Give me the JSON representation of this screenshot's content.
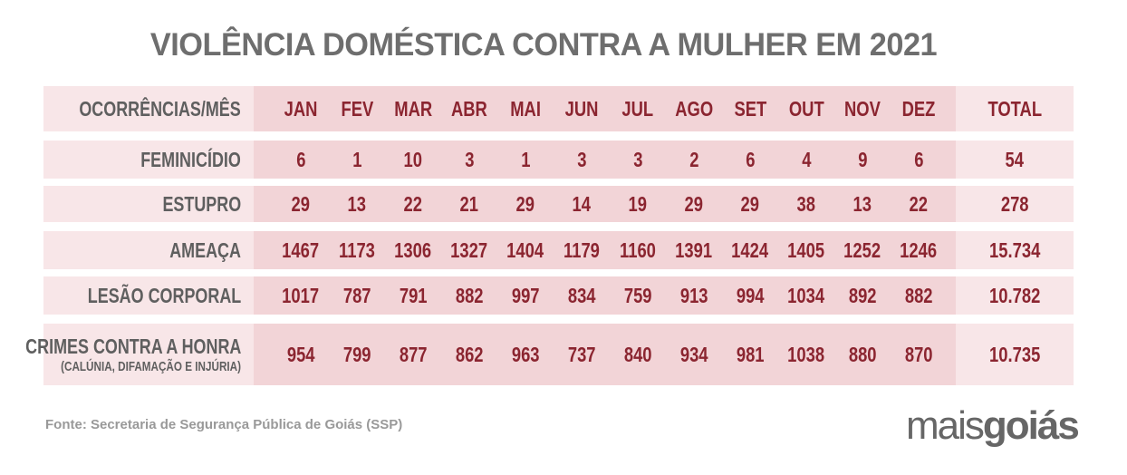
{
  "chart_data": {
    "type": "table",
    "title": "VIOLÊNCIA DOMÉSTICA CONTRA A MULHER EM 2021",
    "header_label": "OCORRÊNCIAS/MÊS",
    "categories": [
      "JAN",
      "FEV",
      "MAR",
      "ABR",
      "MAI",
      "JUN",
      "JUL",
      "AGO",
      "SET",
      "OUT",
      "NOV",
      "DEZ"
    ],
    "total_label": "TOTAL",
    "rows": [
      {
        "name": "FEMINICÍDIO",
        "sub": "",
        "values": [
          6,
          1,
          10,
          3,
          1,
          3,
          3,
          2,
          6,
          4,
          9,
          6
        ],
        "total": "54"
      },
      {
        "name": "ESTUPRO",
        "sub": "",
        "values": [
          29,
          13,
          22,
          21,
          29,
          14,
          19,
          29,
          29,
          38,
          13,
          22
        ],
        "total": "278"
      },
      {
        "name": "AMEAÇA",
        "sub": "",
        "values": [
          1467,
          1173,
          1306,
          1327,
          1404,
          1179,
          1160,
          1391,
          1424,
          1405,
          1252,
          1246
        ],
        "total": "15.734"
      },
      {
        "name": "LESÃO CORPORAL",
        "sub": "",
        "values": [
          1017,
          787,
          791,
          882,
          997,
          834,
          759,
          913,
          994,
          1034,
          892,
          882
        ],
        "total": "10.782"
      },
      {
        "name": "CRIMES CONTRA A HONRA",
        "sub": "(CALÚNIA, DIFAMAÇÃO E INJÚRIA)",
        "values": [
          954,
          799,
          877,
          862,
          963,
          737,
          840,
          934,
          981,
          1038,
          880,
          870
        ],
        "total": "10.735"
      }
    ]
  },
  "source": "Fonte: Secretaria de Segurança  Pública de Goiás (SSP)",
  "logo": {
    "part1": "mais",
    "part2": "goiás"
  },
  "colors": {
    "text_red": "#8b2530",
    "label_gray": "#5f5f5f",
    "bg_light": "#f8e6e8",
    "bg_months": "#f2d4d7"
  }
}
